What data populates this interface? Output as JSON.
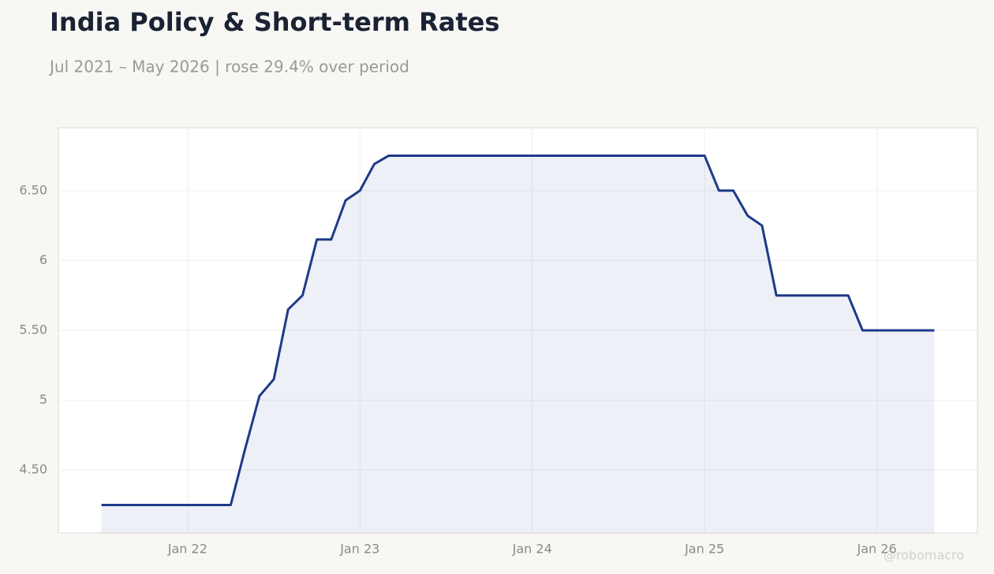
{
  "chart_data": {
    "type": "line",
    "title": "India Policy & Short-term Rates",
    "subtitle": "Jul 2021 – May 2026 | rose 29.4% over period",
    "watermark": "@robomacro",
    "x": [
      "2021-07",
      "2021-08",
      "2021-09",
      "2021-10",
      "2021-11",
      "2021-12",
      "2022-01",
      "2022-02",
      "2022-03",
      "2022-04",
      "2022-05",
      "2022-06",
      "2022-07",
      "2022-08",
      "2022-09",
      "2022-10",
      "2022-11",
      "2022-12",
      "2023-01",
      "2023-02",
      "2023-03",
      "2023-04",
      "2023-05",
      "2023-06",
      "2023-07",
      "2023-08",
      "2023-09",
      "2023-10",
      "2023-11",
      "2023-12",
      "2024-01",
      "2024-02",
      "2024-03",
      "2024-04",
      "2024-05",
      "2024-06",
      "2024-07",
      "2024-08",
      "2024-09",
      "2024-10",
      "2024-11",
      "2024-12",
      "2025-01",
      "2025-02",
      "2025-03",
      "2025-04",
      "2025-05",
      "2025-06",
      "2025-07",
      "2025-08",
      "2025-09",
      "2025-10",
      "2025-11",
      "2025-12",
      "2026-01",
      "2026-02",
      "2026-03",
      "2026-04",
      "2026-05"
    ],
    "series": [
      {
        "name": "India Policy & Short-term Rates",
        "color": "#1e3a8a",
        "values": [
          4.25,
          4.25,
          4.25,
          4.25,
          4.25,
          4.25,
          4.25,
          4.25,
          4.25,
          4.25,
          4.65,
          5.03,
          5.15,
          5.65,
          5.75,
          6.15,
          6.15,
          6.43,
          6.5,
          6.69,
          6.75,
          6.75,
          6.75,
          6.75,
          6.75,
          6.75,
          6.75,
          6.75,
          6.75,
          6.75,
          6.75,
          6.75,
          6.75,
          6.75,
          6.75,
          6.75,
          6.75,
          6.75,
          6.75,
          6.75,
          6.75,
          6.75,
          6.75,
          6.5,
          6.5,
          6.32,
          6.25,
          5.75,
          5.75,
          5.75,
          5.75,
          5.75,
          5.75,
          5.5,
          5.5,
          5.5,
          5.5,
          5.5,
          5.5
        ]
      }
    ],
    "xlim": [
      "2021-04",
      "2026-08"
    ],
    "xticks": [
      {
        "value": "2022-01",
        "label": "Jan 22"
      },
      {
        "value": "2023-01",
        "label": "Jan 23"
      },
      {
        "value": "2024-01",
        "label": "Jan 24"
      },
      {
        "value": "2025-01",
        "label": "Jan 25"
      },
      {
        "value": "2026-01",
        "label": "Jan 26"
      }
    ],
    "ylim": [
      4.05,
      6.95
    ],
    "yticks": [
      {
        "value": 4.5,
        "label": "4.50"
      },
      5,
      {
        "value": 5.5,
        "label": "5.50"
      },
      6,
      {
        "value": 6.5,
        "label": "6.50"
      }
    ],
    "grid": true
  }
}
